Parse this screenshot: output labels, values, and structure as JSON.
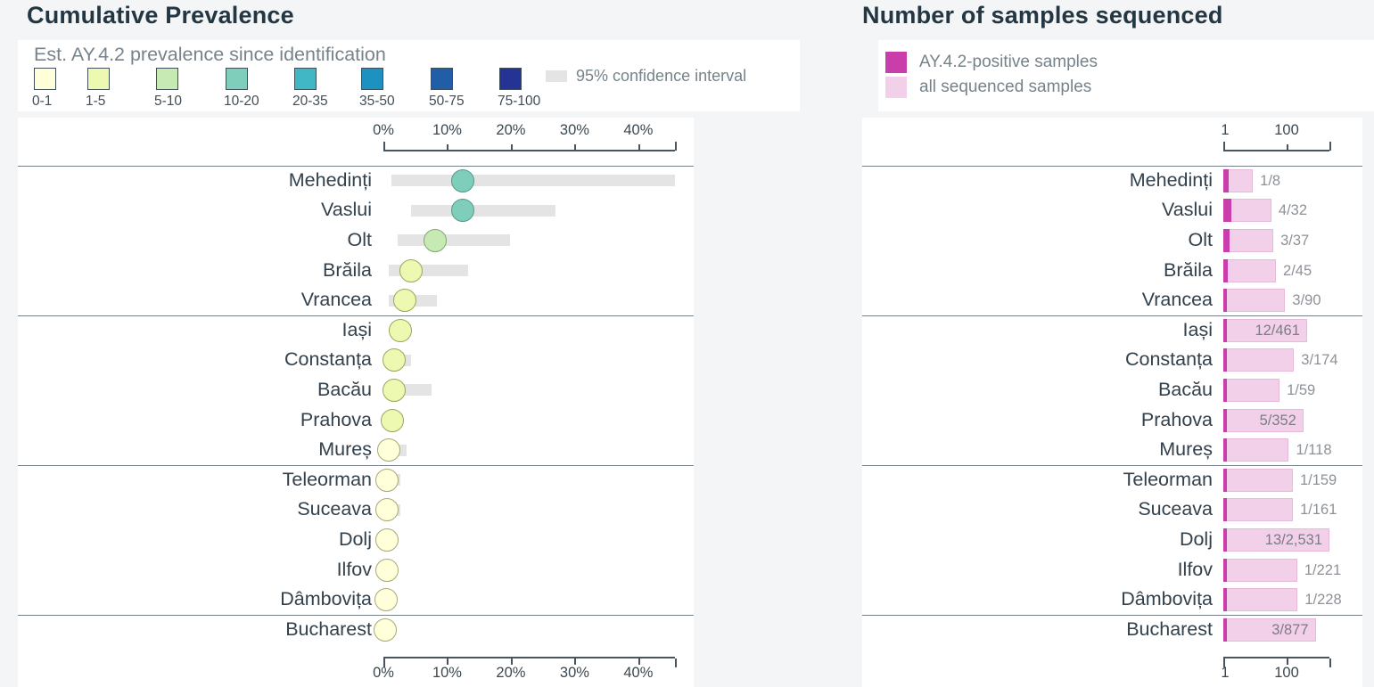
{
  "page_background": "#f3f5f7",
  "left_panel": {
    "ci_color": "#e4e4e4"
  },
  "right_panel": {
    "positive_color": "#c93eab",
    "all_color": "#f3d0ea"
  },
  "chart_data": [
    {
      "type": "scatter",
      "title": "Cumulative Prevalence",
      "legend_title": "Est. AY.4.2 prevalence since identification",
      "ci_legend": "95% confidence interval",
      "x_axis": {
        "unit": "%",
        "ticks": [
          "0%",
          "10%",
          "20%",
          "30%",
          "40%"
        ],
        "tick_values": [
          0,
          10,
          20,
          30,
          40
        ],
        "min": 0,
        "max": 45.7,
        "shown": "top and bottom"
      },
      "color_bands": [
        {
          "label": "0-1",
          "fill": "#ffffd9",
          "stroke": "#a8a878"
        },
        {
          "label": "1-5",
          "fill": "#edf8b1",
          "stroke": "#9aa65e"
        },
        {
          "label": "5-10",
          "fill": "#c7e9b4",
          "stroke": "#82a573"
        },
        {
          "label": "10-20",
          "fill": "#7fcdbb",
          "stroke": "#56998a"
        },
        {
          "label": "20-35",
          "fill": "#41b6c4",
          "stroke": "#2f8793"
        },
        {
          "label": "35-50",
          "fill": "#1d91c0",
          "stroke": "#186e92"
        },
        {
          "label": "50-75",
          "fill": "#225ea8",
          "stroke": "#1a477e"
        },
        {
          "label": "75-100",
          "fill": "#253494",
          "stroke": "#1c276e"
        }
      ],
      "categories": [
        "Mehedinți",
        "Vaslui",
        "Olt",
        "Brăila",
        "Vrancea",
        "Iași",
        "Constanța",
        "Bacău",
        "Prahova",
        "Mureș",
        "Teleorman",
        "Suceava",
        "Dolj",
        "Ilfov",
        "Dâmbovița",
        "Bucharest"
      ],
      "values": [
        12.5,
        12.5,
        8.1,
        4.4,
        3.3,
        2.6,
        1.7,
        1.7,
        1.4,
        0.8,
        0.6,
        0.6,
        0.5,
        0.5,
        0.4,
        0.3
      ],
      "ci_low": [
        1.2,
        4.4,
        2.3,
        0.9,
        0.8,
        1.4,
        0.5,
        0.3,
        0.6,
        0.1,
        0.1,
        0.1,
        0.3,
        0.1,
        0.1,
        0.1
      ],
      "ci_high": [
        45.7,
        27.0,
        19.8,
        13.3,
        8.4,
        4.4,
        4.3,
        7.5,
        3.1,
        3.6,
        2.7,
        2.6,
        0.9,
        1.9,
        1.8,
        0.9
      ],
      "point_bands": [
        "10-20",
        "10-20",
        "5-10",
        "1-5",
        "1-5",
        "1-5",
        "1-5",
        "1-5",
        "1-5",
        "0-1",
        "0-1",
        "0-1",
        "0-1",
        "0-1",
        "0-1",
        "0-1"
      ],
      "group_size": [
        5,
        5,
        5,
        1
      ]
    },
    {
      "type": "bar",
      "title": "Number of samples sequenced",
      "orientation": "horizontal",
      "x_axis": {
        "scale": "log10",
        "ticks": [
          "1",
          "100"
        ],
        "tick_values": [
          1,
          100
        ],
        "min": 1,
        "max": 2600,
        "shown": "top and bottom"
      },
      "series": [
        {
          "name": "AY.4.2-positive samples",
          "color": "#c93eab",
          "values": [
            1,
            4,
            3,
            2,
            3,
            12,
            3,
            1,
            5,
            1,
            1,
            1,
            13,
            1,
            1,
            3
          ]
        },
        {
          "name": "all sequenced samples",
          "color": "#f3d0ea",
          "values": [
            8,
            32,
            37,
            45,
            90,
            461,
            174,
            59,
            352,
            118,
            159,
            161,
            2531,
            221,
            228,
            877
          ]
        }
      ],
      "categories": [
        "Mehedinți",
        "Vaslui",
        "Olt",
        "Brăila",
        "Vrancea",
        "Iași",
        "Constanța",
        "Bacău",
        "Prahova",
        "Mureș",
        "Teleorman",
        "Suceava",
        "Dolj",
        "Ilfov",
        "Dâmbovița",
        "Bucharest"
      ],
      "labels": [
        "1/8",
        "4/32",
        "3/37",
        "2/45",
        "3/90",
        "12/461",
        "3/174",
        "1/59",
        "5/352",
        "1/118",
        "1/159",
        "1/161",
        "13/2,531",
        "1/221",
        "1/228",
        "3/877"
      ],
      "labels_inside": [
        false,
        false,
        false,
        false,
        false,
        true,
        false,
        false,
        true,
        false,
        false,
        false,
        true,
        false,
        false,
        true
      ],
      "group_size": [
        5,
        5,
        5,
        1
      ]
    }
  ]
}
